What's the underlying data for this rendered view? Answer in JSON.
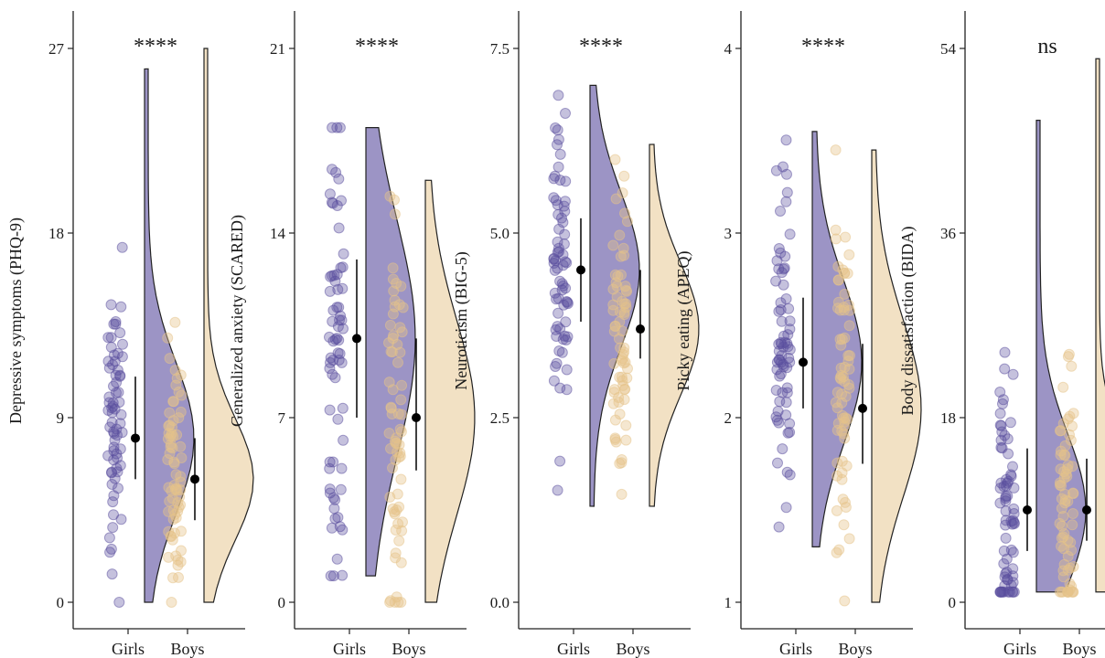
{
  "colors": {
    "girls": "#5a4d9e",
    "boys": "#e6c38a",
    "axis": "#222222",
    "summary": "#000000"
  },
  "chart_data": [
    {
      "type": "raincloud",
      "ylabel": "Depressive symptoms (PHQ-9)",
      "categories": [
        "Girls",
        "Boys"
      ],
      "ylim": [
        0,
        27
      ],
      "yticks": [
        0,
        9,
        18,
        27
      ],
      "ytick_labels": [
        "0",
        "9",
        "18",
        "27"
      ],
      "significance": "****",
      "series": [
        {
          "name": "Girls",
          "median": 8,
          "q1": 6,
          "q3": 11,
          "range": [
            0,
            26
          ]
        },
        {
          "name": "Boys",
          "median": 6,
          "q1": 4,
          "q3": 8,
          "range": [
            0,
            27
          ]
        }
      ]
    },
    {
      "type": "raincloud",
      "ylabel": "Generalized anxiety (SCARED)",
      "categories": [
        "Girls",
        "Boys"
      ],
      "ylim": [
        0,
        21
      ],
      "yticks": [
        0,
        7,
        14,
        21
      ],
      "ytick_labels": [
        "0",
        "7",
        "14",
        "21"
      ],
      "significance": "****",
      "series": [
        {
          "name": "Girls",
          "median": 10,
          "q1": 7,
          "q3": 13,
          "range": [
            1,
            18
          ]
        },
        {
          "name": "Boys",
          "median": 7,
          "q1": 5,
          "q3": 10,
          "range": [
            0,
            16
          ]
        }
      ]
    },
    {
      "type": "raincloud",
      "ylabel": "Neuroticism (BIG-5)",
      "categories": [
        "Girls",
        "Boys"
      ],
      "ylim": [
        0,
        7.5
      ],
      "yticks": [
        0,
        2.5,
        5,
        7.5
      ],
      "ytick_labels": [
        "0.0",
        "2.5",
        "5.0",
        "7.5"
      ],
      "significance": "****",
      "series": [
        {
          "name": "Girls",
          "median": 4.5,
          "q1": 3.8,
          "q3": 5.2,
          "range": [
            1.3,
            7.0
          ]
        },
        {
          "name": "Boys",
          "median": 3.7,
          "q1": 3.3,
          "q3": 4.5,
          "range": [
            1.3,
            6.2
          ]
        }
      ]
    },
    {
      "type": "raincloud",
      "ylabel": "Picky eating (APEQ)",
      "categories": [
        "Girls",
        "Boys"
      ],
      "ylim": [
        1,
        4
      ],
      "yticks": [
        1,
        2,
        3,
        4
      ],
      "ytick_labels": [
        "1",
        "2",
        "3",
        "4"
      ],
      "significance": "****",
      "series": [
        {
          "name": "Girls",
          "median": 2.3,
          "q1": 2.05,
          "q3": 2.65,
          "range": [
            1.3,
            3.55
          ]
        },
        {
          "name": "Boys",
          "median": 2.05,
          "q1": 1.75,
          "q3": 2.4,
          "range": [
            1.0,
            3.45
          ]
        }
      ]
    },
    {
      "type": "raincloud",
      "ylabel": "Body dissatisfaction (BIDA)",
      "categories": [
        "Girls",
        "Boys"
      ],
      "ylim": [
        0,
        54
      ],
      "yticks": [
        0,
        18,
        36,
        54
      ],
      "ytick_labels": [
        "0",
        "18",
        "36",
        "54"
      ],
      "significance": "ns",
      "series": [
        {
          "name": "Girls",
          "median": 9,
          "q1": 5,
          "q3": 15,
          "range": [
            1,
            47
          ]
        },
        {
          "name": "Boys",
          "median": 9,
          "q1": 6,
          "q3": 14,
          "range": [
            1,
            53
          ]
        }
      ]
    }
  ]
}
